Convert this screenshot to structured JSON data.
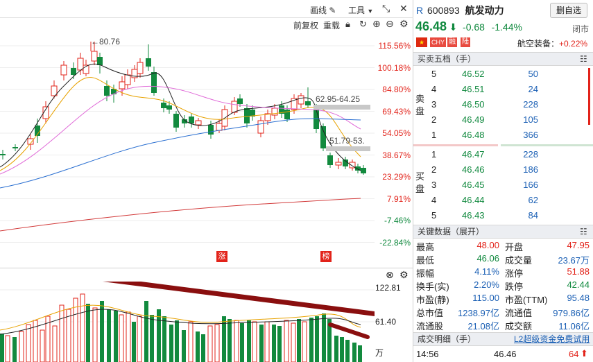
{
  "toolbar": {
    "draw_label": "画线",
    "tools_label": "工具",
    "adjust_label": "前复权",
    "overlay_label": "重载"
  },
  "price_axis": [
    "115.56%",
    "100.18%",
    "84.80%",
    "69.43%",
    "54.05%",
    "38.67%",
    "23.29%",
    "7.91%",
    "-7.46%",
    "-22.84%"
  ],
  "annotations": {
    "high": "←80.76",
    "range1": "62.95-64.25",
    "range2": "51.79-53.",
    "limit_up_tag": "涨",
    "rank_tag": "榜"
  },
  "volume_axis": {
    "top": "122.81",
    "mid": "61.40",
    "unit": "万"
  },
  "header": {
    "prefix": "R",
    "code": "600893",
    "name": "航发动力",
    "watchlist_button": "删自选",
    "price": "46.48",
    "change": "-0.68",
    "change_pct": "-1.44%",
    "status": "闭市",
    "badges": [
      "CHY",
      "融",
      "陆"
    ],
    "sector": "航空装备：",
    "sector_change": "+0.22%"
  },
  "orderbook": {
    "title": "买卖五档（手）",
    "sell_label": "卖盘",
    "buy_label": "买盘",
    "sells": [
      {
        "level": "5",
        "price": "46.52",
        "volume": "50"
      },
      {
        "level": "4",
        "price": "46.51",
        "volume": "24"
      },
      {
        "level": "3",
        "price": "46.50",
        "volume": "228"
      },
      {
        "level": "2",
        "price": "46.49",
        "volume": "105"
      },
      {
        "level": "1",
        "price": "46.48",
        "volume": "366"
      }
    ],
    "buys": [
      {
        "level": "1",
        "price": "46.47",
        "volume": "228"
      },
      {
        "level": "2",
        "price": "46.46",
        "volume": "186"
      },
      {
        "level": "3",
        "price": "46.45",
        "volume": "166"
      },
      {
        "level": "4",
        "price": "46.44",
        "volume": "62"
      },
      {
        "level": "5",
        "price": "46.43",
        "volume": "84"
      }
    ]
  },
  "key_data": {
    "title": "关键数据（展开）",
    "rows": [
      {
        "l1": "最高",
        "v1": "48.00",
        "c1": "red",
        "l2": "开盘",
        "v2": "47.95",
        "c2": "red"
      },
      {
        "l1": "最低",
        "v1": "46.06",
        "c1": "green",
        "l2": "成交量",
        "v2": "23.67万",
        "c2": "blue"
      },
      {
        "l1": "振幅",
        "v1": "4.11%",
        "c1": "blue",
        "l2": "涨停",
        "v2": "51.88",
        "c2": "red"
      },
      {
        "l1": "换手(实)",
        "v1": "2.20%",
        "c1": "blue",
        "l2": "跌停",
        "v2": "42.44",
        "c2": "green"
      },
      {
        "l1": "市盈(静)",
        "v1": "115.00",
        "c1": "blue",
        "l2": "市盈(TTM)",
        "v2": "95.48",
        "c2": "blue"
      },
      {
        "l1": "总市值",
        "v1": "1238.97亿",
        "c1": "blue",
        "l2": "流通值",
        "v2": "979.86亿",
        "c2": "blue"
      },
      {
        "l1": "流通股",
        "v1": "21.08亿",
        "c1": "blue",
        "l2": "成交额",
        "v2": "11.06亿",
        "c2": "blue"
      }
    ]
  },
  "trades": {
    "title": "成交明细（手）",
    "link": "L2超级资金免费试用",
    "time": "14:56",
    "price": "46.46",
    "volume": "64"
  }
}
